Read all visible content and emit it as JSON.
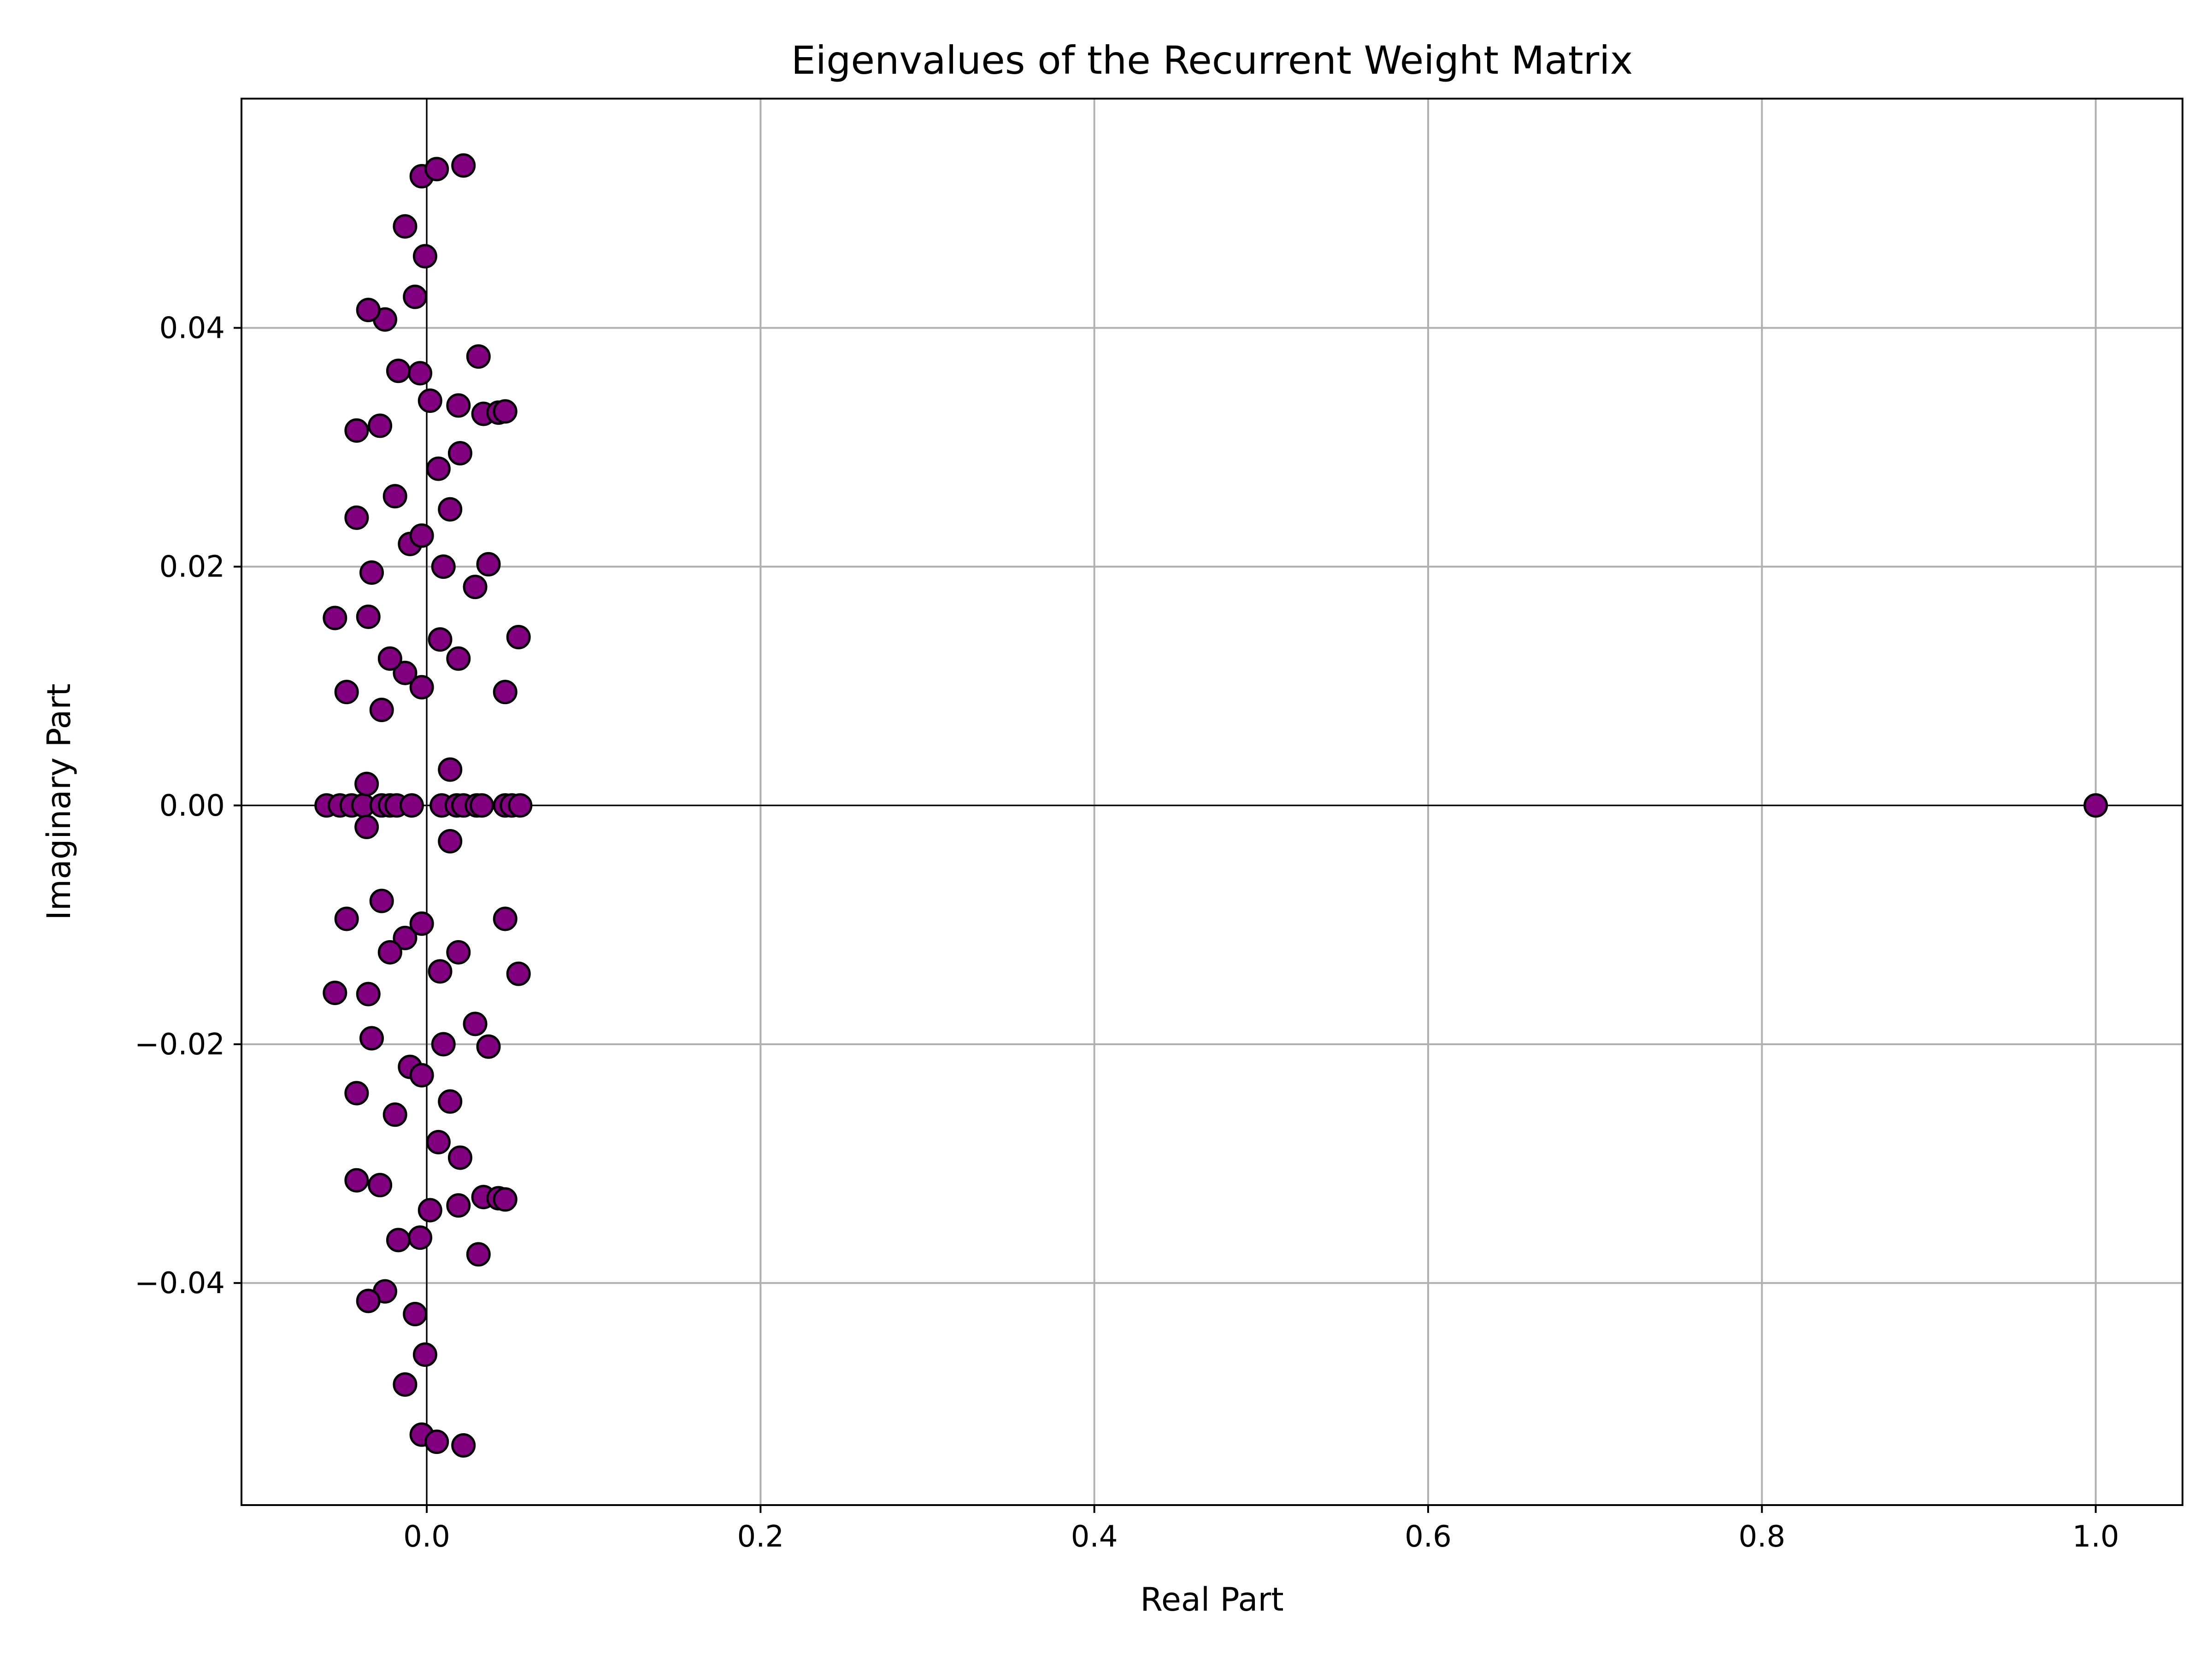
{
  "chart_data": {
    "type": "scatter",
    "title": "Eigenvalues of the Recurrent Weight Matrix",
    "xlabel": "Real Part",
    "ylabel": "Imaginary Part",
    "xlim": [
      -0.111,
      1.052
    ],
    "ylim": [
      -0.0586,
      0.0592
    ],
    "xticks": [
      0.0,
      0.2,
      0.4,
      0.6,
      0.8,
      1.0
    ],
    "xtick_labels": [
      "0.0",
      "0.2",
      "0.4",
      "0.6",
      "0.8",
      "1.0"
    ],
    "yticks": [
      -0.04,
      -0.02,
      0.0,
      0.02,
      0.04
    ],
    "ytick_labels": [
      "−0.04",
      "−0.02",
      "0.00",
      "0.02",
      "0.04"
    ],
    "grid": true,
    "reference_lines": {
      "x": 0,
      "y": 0
    },
    "marker_color": "#800080",
    "marker_edge_color": "#000000",
    "series": [
      {
        "points": [
          [
            1.0,
            0.0
          ],
          [
            -0.06,
            0.0
          ],
          [
            -0.052,
            0.0
          ],
          [
            -0.045,
            0.0
          ],
          [
            -0.038,
            0.0
          ],
          [
            -0.027,
            0.0
          ],
          [
            -0.022,
            0.0
          ],
          [
            -0.018,
            0.0
          ],
          [
            -0.009,
            0.0
          ],
          [
            0.009,
            0.0
          ],
          [
            0.018,
            0.0
          ],
          [
            0.022,
            0.0
          ],
          [
            0.03,
            0.0
          ],
          [
            0.033,
            0.0
          ],
          [
            0.047,
            0.0
          ],
          [
            0.051,
            0.0
          ],
          [
            0.056,
            0.0
          ],
          [
            -0.036,
            0.0018
          ],
          [
            -0.036,
            -0.0018
          ],
          [
            0.014,
            0.003
          ],
          [
            0.014,
            -0.003
          ],
          [
            -0.027,
            0.008
          ],
          [
            -0.027,
            -0.008
          ],
          [
            -0.048,
            0.0095
          ],
          [
            -0.048,
            -0.0095
          ],
          [
            -0.003,
            0.0099
          ],
          [
            -0.003,
            -0.0099
          ],
          [
            0.047,
            0.0095
          ],
          [
            0.047,
            -0.0095
          ],
          [
            -0.013,
            0.0111
          ],
          [
            -0.013,
            -0.0111
          ],
          [
            -0.022,
            0.0123
          ],
          [
            -0.022,
            -0.0123
          ],
          [
            0.019,
            0.0123
          ],
          [
            0.019,
            -0.0123
          ],
          [
            0.008,
            0.0139
          ],
          [
            0.008,
            -0.0139
          ],
          [
            0.055,
            0.0141
          ],
          [
            0.055,
            -0.0141
          ],
          [
            -0.055,
            0.0157
          ],
          [
            -0.055,
            -0.0157
          ],
          [
            -0.035,
            0.0158
          ],
          [
            -0.035,
            -0.0158
          ],
          [
            0.029,
            0.0183
          ],
          [
            0.029,
            -0.0183
          ],
          [
            -0.033,
            0.0195
          ],
          [
            -0.033,
            -0.0195
          ],
          [
            0.01,
            0.02
          ],
          [
            0.01,
            -0.02
          ],
          [
            0.037,
            0.0202
          ],
          [
            0.037,
            -0.0202
          ],
          [
            -0.01,
            0.0219
          ],
          [
            -0.01,
            -0.0219
          ],
          [
            -0.003,
            0.0226
          ],
          [
            -0.003,
            -0.0226
          ],
          [
            -0.042,
            0.0241
          ],
          [
            -0.042,
            -0.0241
          ],
          [
            0.014,
            0.0248
          ],
          [
            0.014,
            -0.0248
          ],
          [
            -0.019,
            0.0259
          ],
          [
            -0.019,
            -0.0259
          ],
          [
            0.007,
            0.0282
          ],
          [
            0.007,
            -0.0282
          ],
          [
            0.02,
            0.0295
          ],
          [
            0.02,
            -0.0295
          ],
          [
            -0.042,
            0.0314
          ],
          [
            -0.042,
            -0.0314
          ],
          [
            -0.028,
            0.0318
          ],
          [
            -0.028,
            -0.0318
          ],
          [
            0.034,
            0.0328
          ],
          [
            0.034,
            -0.0328
          ],
          [
            0.043,
            0.0329
          ],
          [
            0.043,
            -0.0329
          ],
          [
            0.047,
            0.033
          ],
          [
            0.047,
            -0.033
          ],
          [
            0.019,
            0.0335
          ],
          [
            0.019,
            -0.0335
          ],
          [
            0.002,
            0.0339
          ],
          [
            0.002,
            -0.0339
          ],
          [
            -0.004,
            0.0362
          ],
          [
            -0.004,
            -0.0362
          ],
          [
            -0.017,
            0.0364
          ],
          [
            -0.017,
            -0.0364
          ],
          [
            0.031,
            0.0376
          ],
          [
            0.031,
            -0.0376
          ],
          [
            -0.025,
            0.0407
          ],
          [
            -0.025,
            -0.0407
          ],
          [
            -0.035,
            0.0415
          ],
          [
            -0.035,
            -0.0415
          ],
          [
            -0.007,
            0.0426
          ],
          [
            -0.007,
            -0.0426
          ],
          [
            -0.001,
            0.046
          ],
          [
            -0.001,
            -0.046
          ],
          [
            -0.013,
            0.0485
          ],
          [
            -0.013,
            -0.0485
          ],
          [
            -0.003,
            0.0527
          ],
          [
            -0.003,
            -0.0527
          ],
          [
            0.006,
            0.0533
          ],
          [
            0.006,
            -0.0533
          ],
          [
            0.022,
            0.0536
          ],
          [
            0.022,
            -0.0536
          ]
        ]
      }
    ]
  }
}
